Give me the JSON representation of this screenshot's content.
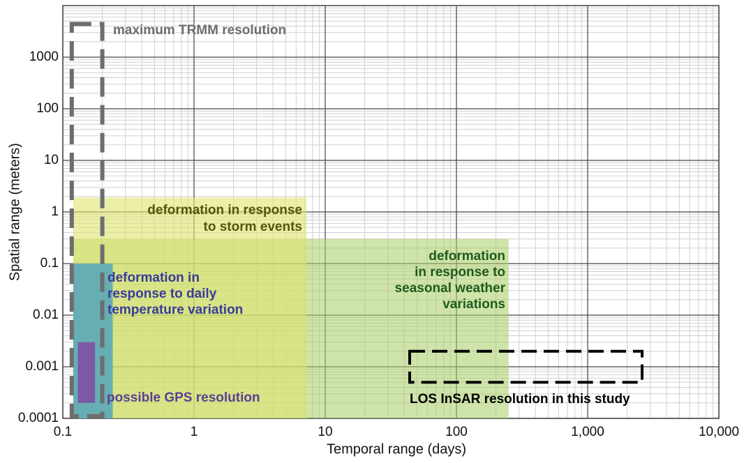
{
  "chart_data": {
    "type": "region",
    "x_label": "Temporal range (days)",
    "y_label": "Spatial range (meters)",
    "xlim": [
      0.1,
      10000
    ],
    "ylim": [
      0.0001,
      10000
    ],
    "xscale": "log",
    "yscale": "log",
    "xticks": [
      0.1,
      1,
      10,
      100,
      {
        "value": 1000,
        "label": "1,000"
      },
      {
        "value": 10000,
        "label": "10,000"
      }
    ],
    "yticks": [
      0.0001,
      0.001,
      0.01,
      0.1,
      1,
      10,
      100,
      1000
    ],
    "grid": true,
    "minor_grid": true,
    "regions": [
      {
        "label": [
          "deformation",
          "in response to",
          "seasonal weather",
          "variations"
        ],
        "x": [
          0.12,
          250
        ],
        "y": [
          0.0001,
          0.3
        ],
        "style": "fill",
        "color": "rgba(168,206,100,0.55)",
        "label_color": "#1f5a1f"
      },
      {
        "label": [
          "deformation in response",
          "to storm events"
        ],
        "x": [
          0.12,
          7.2
        ],
        "y": [
          0.0001,
          1.9
        ],
        "style": "fill",
        "color": "rgba(222,228,110,0.6)",
        "label_color": "#55560f"
      },
      {
        "label": [
          "deformation in",
          "response to daily",
          "temperature variation"
        ],
        "x": [
          0.12,
          0.24
        ],
        "y": [
          0.0001,
          0.1
        ],
        "style": "fill",
        "color": "#67aeb2",
        "label_color": "#3b3b9a"
      },
      {
        "label": [
          "possible GPS resolution"
        ],
        "x": [
          0.13,
          0.176
        ],
        "y": [
          0.0002,
          0.003
        ],
        "style": "fill",
        "color": "#7c5aa8",
        "label_color": "#5b3f96"
      },
      {
        "label": [
          "maximum TRMM resolution"
        ],
        "x": [
          0.117,
          0.2
        ],
        "y": [
          0.00011,
          4400
        ],
        "style": "dashed",
        "color": "#6d6d70",
        "label_color": "#6d6d70"
      },
      {
        "label": [
          "LOS InSAR resolution in this study"
        ],
        "x": [
          44,
          2600
        ],
        "y": [
          0.0005,
          0.002
        ],
        "style": "dashed",
        "color": "#000000",
        "label_color": "#000000"
      }
    ]
  }
}
